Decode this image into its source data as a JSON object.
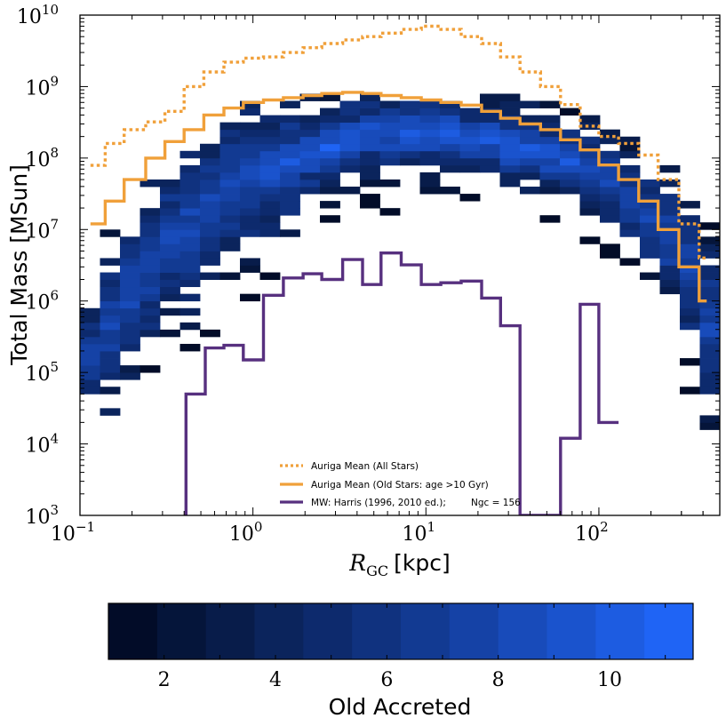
{
  "chart_data": {
    "type": "heatmap",
    "title": "",
    "xlabel": "R_GC [kpc]",
    "xlabel_main": "R",
    "xlabel_sub": "GC",
    "xlabel_unit": "[kpc]",
    "ylabel": "Total Mass [MSun]",
    "x_scale": "log",
    "y_scale": "log",
    "xlim": [
      0.1,
      500
    ],
    "ylim": [
      1000,
      10000000000
    ],
    "x_ticks": [
      {
        "base": "10",
        "exp": "−1"
      },
      {
        "base": "10",
        "exp": "0"
      },
      {
        "base": "10",
        "exp": "1"
      },
      {
        "base": "10",
        "exp": "2"
      }
    ],
    "y_ticks": [
      {
        "base": "10",
        "exp": "3"
      },
      {
        "base": "10",
        "exp": "4"
      },
      {
        "base": "10",
        "exp": "5"
      },
      {
        "base": "10",
        "exp": "6"
      },
      {
        "base": "10",
        "exp": "7"
      },
      {
        "base": "10",
        "exp": "8"
      },
      {
        "base": "10",
        "exp": "9"
      },
      {
        "base": "10",
        "exp": "10"
      }
    ],
    "legend": {
      "placement": "lower center",
      "entries": [
        {
          "label": "Auriga Mean (All Stars)",
          "style": "dotted",
          "color": "#f0a03a"
        },
        {
          "label": "Auriga Mean (Old Stars: age >10 Gyr)",
          "style": "solid",
          "color": "#f0a03a"
        },
        {
          "label": "MW: Harris (1996, 2010 ed.);",
          "extra": "Ngc = 156",
          "style": "solid",
          "color": "#57307f"
        }
      ]
    },
    "series": [
      {
        "name": "Auriga Mean (All Stars)",
        "kind": "step",
        "color": "#f0a03a",
        "x_edges": [
          0.115,
          0.14,
          0.18,
          0.24,
          0.31,
          0.4,
          0.52,
          0.68,
          0.88,
          1.15,
          1.5,
          1.95,
          2.5,
          3.3,
          4.3,
          5.5,
          7.2,
          9.4,
          12.2,
          16,
          21,
          27,
          35,
          46,
          60,
          78,
          100,
          130,
          170,
          220,
          290,
          380,
          420
        ],
        "y": [
          79000000.0,
          160000000.0,
          250000000.0,
          320000000.0,
          450000000.0,
          1000000000.0,
          1600000000.0,
          2200000000.0,
          2500000000.0,
          2600000000.0,
          3000000000.0,
          3500000000.0,
          4000000000.0,
          4500000000.0,
          5000000000.0,
          5600000000.0,
          6300000000.0,
          7000000000.0,
          6300000000.0,
          5000000000.0,
          4000000000.0,
          2600000000.0,
          1600000000.0,
          1000000000.0,
          560000000.0,
          280000000.0,
          200000000.0,
          160000000.0,
          110000000.0,
          50000000.0,
          12000000.0,
          4000000.0
        ]
      },
      {
        "name": "Auriga Mean (Old Stars: age >10 Gyr)",
        "kind": "step",
        "color": "#f0a03a",
        "x_edges": [
          0.115,
          0.14,
          0.18,
          0.24,
          0.31,
          0.4,
          0.52,
          0.68,
          0.88,
          1.15,
          1.5,
          1.95,
          2.5,
          3.3,
          4.3,
          5.5,
          7.2,
          9.4,
          12.2,
          16,
          21,
          27,
          35,
          46,
          60,
          78,
          100,
          130,
          170,
          220,
          290,
          380,
          420
        ],
        "y": [
          12000000.0,
          25000000.0,
          50000000.0,
          100000000.0,
          170000000.0,
          250000000.0,
          400000000.0,
          500000000.0,
          600000000.0,
          650000000.0,
          700000000.0,
          750000000.0,
          800000000.0,
          830000000.0,
          800000000.0,
          750000000.0,
          700000000.0,
          650000000.0,
          600000000.0,
          550000000.0,
          450000000.0,
          360000000.0,
          300000000.0,
          250000000.0,
          180000000.0,
          130000000.0,
          80000000.0,
          50000000.0,
          25000000.0,
          10000000.0,
          3000000.0,
          1000000.0
        ]
      },
      {
        "name": "MW: Harris (1996, 2010 ed.)",
        "kind": "step",
        "color": "#57307f",
        "x_edges": [
          0.41,
          0.53,
          0.68,
          0.88,
          1.15,
          1.5,
          1.95,
          2.5,
          3.3,
          4.3,
          5.5,
          7.2,
          9.4,
          12.2,
          16,
          21,
          27,
          35,
          46,
          60,
          78,
          100,
          130
        ],
        "y": [
          50000,
          220000,
          240000,
          150000,
          1200000,
          2100000,
          2400000,
          2000000,
          3800000,
          1700000,
          4700000,
          3200000,
          1700000,
          1800000,
          1900000,
          1100000,
          450000,
          1000,
          1000,
          12000,
          900000,
          20000
        ]
      }
    ],
    "heatmap_grid": {
      "x_bins": 32,
      "y_rows_per_decade": 10,
      "y_rows_total": 70,
      "colorbar_label": "Old Accreted",
      "colorbar_ticks": [
        "2",
        "4",
        "6",
        "8",
        "10"
      ],
      "colorbar_range": [
        1,
        11.5
      ],
      "colorbar_colors": [
        "#020c28",
        "#05153a",
        "#081c4a",
        "#0b245c",
        "#0d2a6d",
        "#10327f",
        "#123a92",
        "#1542a6",
        "#184bba",
        "#1a53cd",
        "#1d5ce1",
        "#1f64f5"
      ],
      "columns": [
        {
          "c": 0,
          "lo": 12,
          "hi": 32,
          "peak": 22
        },
        {
          "c": 1,
          "lo": 14,
          "hi": 42,
          "peak": 26
        },
        {
          "c": 2,
          "lo": 16,
          "hi": 45,
          "peak": 30
        },
        {
          "c": 3,
          "lo": 19,
          "hi": 49,
          "peak": 34
        },
        {
          "c": 4,
          "lo": 19,
          "hi": 51,
          "peak": 38
        },
        {
          "c": 5,
          "lo": 21,
          "hi": 53,
          "peak": 40
        },
        {
          "c": 6,
          "lo": 25,
          "hi": 55,
          "peak": 43
        },
        {
          "c": 7,
          "lo": 27,
          "hi": 57,
          "peak": 45
        },
        {
          "c": 8,
          "lo": 28,
          "hi": 57,
          "peak": 47
        },
        {
          "c": 9,
          "lo": 30,
          "hi": 58,
          "peak": 48
        },
        {
          "c": 10,
          "lo": 34,
          "hi": 58,
          "peak": 49
        },
        {
          "c": 11,
          "lo": 38,
          "hi": 58,
          "peak": 50
        },
        {
          "c": 12,
          "lo": 40,
          "hi": 58,
          "peak": 51
        },
        {
          "c": 13,
          "lo": 41,
          "hi": 59,
          "peak": 52
        },
        {
          "c": 14,
          "lo": 42,
          "hi": 59,
          "peak": 53
        },
        {
          "c": 15,
          "lo": 42,
          "hi": 59,
          "peak": 53
        },
        {
          "c": 16,
          "lo": 42,
          "hi": 59,
          "peak": 53
        },
        {
          "c": 17,
          "lo": 43,
          "hi": 59,
          "peak": 53
        },
        {
          "c": 18,
          "lo": 43,
          "hi": 58,
          "peak": 53
        },
        {
          "c": 19,
          "lo": 43,
          "hi": 58,
          "peak": 52
        },
        {
          "c": 20,
          "lo": 43,
          "hi": 58,
          "peak": 52
        },
        {
          "c": 21,
          "lo": 42,
          "hi": 58,
          "peak": 51
        },
        {
          "c": 22,
          "lo": 42,
          "hi": 57,
          "peak": 51
        },
        {
          "c": 23,
          "lo": 41,
          "hi": 57,
          "peak": 50
        },
        {
          "c": 24,
          "lo": 40,
          "hi": 56,
          "peak": 49
        },
        {
          "c": 25,
          "lo": 38,
          "hi": 55,
          "peak": 48
        },
        {
          "c": 26,
          "lo": 36,
          "hi": 54,
          "peak": 46
        },
        {
          "c": 27,
          "lo": 34,
          "hi": 52,
          "peak": 44
        },
        {
          "c": 28,
          "lo": 30,
          "hi": 50,
          "peak": 41
        },
        {
          "c": 29,
          "lo": 26,
          "hi": 48,
          "peak": 38
        },
        {
          "c": 30,
          "lo": 16,
          "hi": 44,
          "peak": 34
        },
        {
          "c": 31,
          "lo": 10,
          "hi": 40,
          "peak": 26
        }
      ]
    }
  }
}
